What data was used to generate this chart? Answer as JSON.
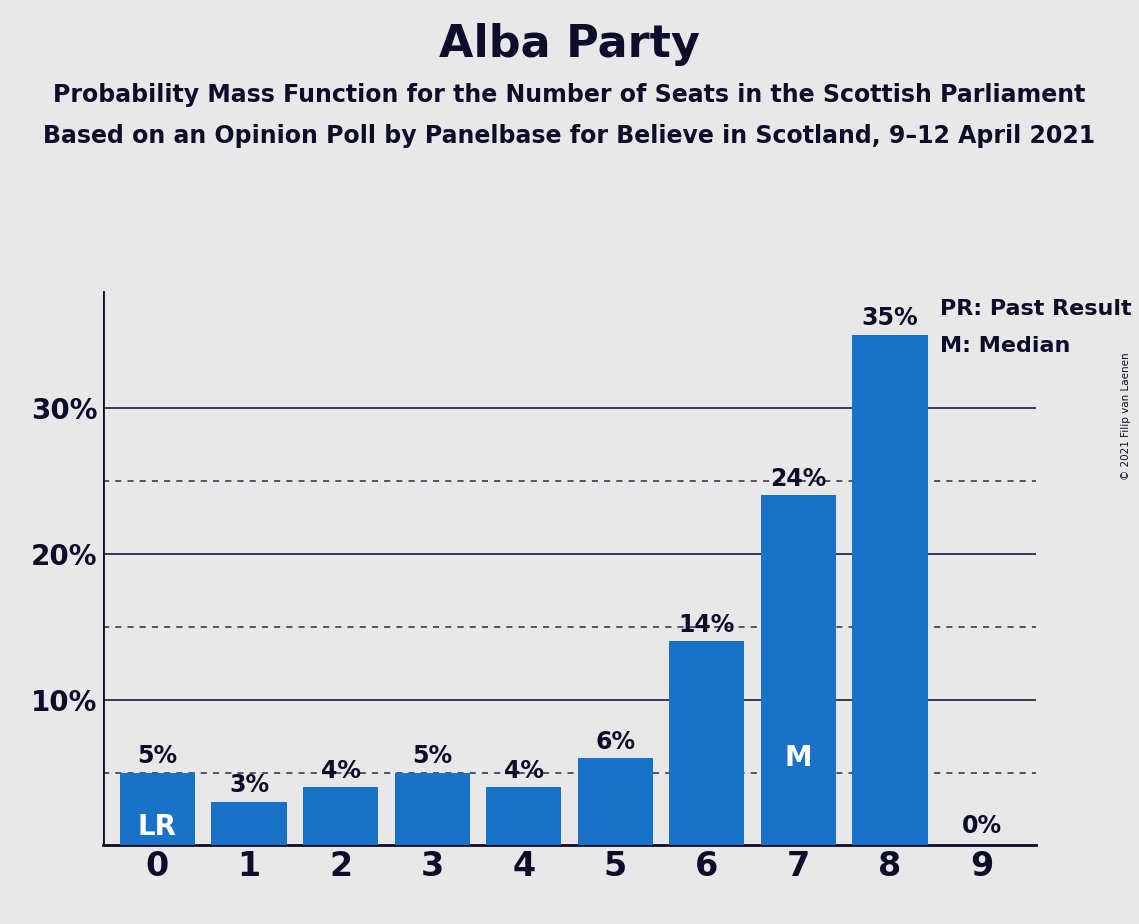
{
  "title": "Alba Party",
  "subtitle1": "Probability Mass Function for the Number of Seats in the Scottish Parliament",
  "subtitle2": "Based on an Opinion Poll by Panelbase for Believe in Scotland, 9–12 April 2021",
  "copyright": "© 2021 Filip van Laenen",
  "categories": [
    0,
    1,
    2,
    3,
    4,
    5,
    6,
    7,
    8,
    9
  ],
  "values": [
    5,
    3,
    4,
    5,
    4,
    6,
    14,
    24,
    35,
    0
  ],
  "bar_color": "#1a72c8",
  "background_color": "#e8e8e8",
  "title_color": "#0d0d2b",
  "last_result_bar": 0,
  "median_bar": 7,
  "pct_labels": [
    "5%",
    "3%",
    "4%",
    "5%",
    "4%",
    "6%",
    "14%",
    "24%",
    "35%",
    "0%"
  ],
  "bar_inner_labels": [
    [
      0,
      "LR"
    ],
    [
      7,
      "M"
    ]
  ],
  "legend_pr": "PR: Past Result",
  "legend_m": "M: Median",
  "yticks": [
    0,
    10,
    20,
    30
  ],
  "ytick_labels": [
    "",
    "10%",
    "20%",
    "30%"
  ],
  "solid_lines": [
    10,
    20,
    30
  ],
  "dotted_lines": [
    5,
    15,
    25
  ],
  "ylim": [
    0,
    38
  ],
  "title_fontsize": 32,
  "subtitle_fontsize": 17,
  "pct_label_fontsize": 17,
  "bar_inner_fontsize": 20,
  "ytick_fontsize": 20,
  "xtick_fontsize": 24,
  "legend_fontsize": 16
}
